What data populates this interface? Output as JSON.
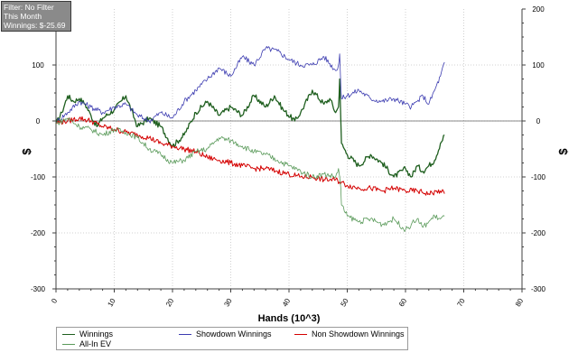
{
  "filter_box": {
    "line1": "Filter: No Filter",
    "line2": "This Month",
    "line3": "Winnings: $-25.69"
  },
  "legend": [
    {
      "label": "Winnings",
      "color": "#1f5f1f"
    },
    {
      "label": "Showdown Winnings",
      "color": "#3b3bb0"
    },
    {
      "label": "Non Showdown Winnings",
      "color": "#d40000"
    },
    {
      "label": "All-In EV",
      "color": "#5a9a5a"
    }
  ],
  "chart_data": {
    "type": "line",
    "xlabel": "Hands (10^3)",
    "ylabel": "$",
    "xlim": [
      0,
      80
    ],
    "ylim": [
      -300,
      200
    ],
    "y_display_max_left": 100,
    "x_ticks": [
      "0",
      "10",
      "20",
      "30",
      "40",
      "50",
      "60",
      "70",
      "80"
    ],
    "y_ticks": [
      "200",
      "100",
      "0",
      "-100",
      "-200",
      "-300"
    ],
    "y_ticks_left": [
      "100",
      "0",
      "-100",
      "-200",
      "-300"
    ],
    "grid": true,
    "legend_position": "bottom",
    "series": [
      {
        "name": "Winnings",
        "color": "#1f5f1f",
        "width": 1.3,
        "x": [
          0,
          1,
          2,
          3,
          4,
          5,
          6,
          7,
          8,
          10,
          12,
          14,
          16,
          18,
          20,
          22,
          24,
          26,
          28,
          30,
          32,
          34,
          36,
          37.5,
          39,
          41,
          42,
          44,
          46,
          47,
          48,
          48.5,
          48.7,
          48.9,
          49,
          50,
          52,
          54,
          56,
          58,
          60,
          61,
          62,
          63,
          64,
          65,
          66,
          66.7
        ],
        "y": [
          -5,
          15,
          45,
          35,
          40,
          30,
          10,
          -10,
          5,
          20,
          45,
          -10,
          5,
          -10,
          -45,
          -25,
          15,
          35,
          10,
          25,
          10,
          45,
          25,
          45,
          20,
          0,
          15,
          55,
          30,
          40,
          15,
          25,
          75,
          0,
          -40,
          -60,
          -80,
          -60,
          -75,
          -100,
          -85,
          -100,
          -80,
          -90,
          -80,
          -70,
          -40,
          -25
        ]
      },
      {
        "name": "Showdown Winnings",
        "color": "#3b3bb0",
        "width": 0.8,
        "x": [
          0,
          2,
          4,
          6,
          8,
          10,
          12,
          14,
          16,
          18,
          20,
          22,
          24,
          26,
          28,
          30,
          32,
          34,
          36,
          38,
          40,
          42,
          44,
          46,
          48,
          48.5,
          48.7,
          48.9,
          49,
          50,
          52,
          54,
          56,
          58,
          60,
          61,
          62,
          63,
          64,
          65,
          66,
          66.7
        ],
        "y": [
          -2,
          15,
          35,
          25,
          15,
          25,
          30,
          10,
          0,
          15,
          5,
          35,
          55,
          75,
          95,
          80,
          115,
          100,
          130,
          125,
          110,
          100,
          100,
          115,
          90,
          100,
          120,
          60,
          40,
          45,
          55,
          40,
          35,
          40,
          30,
          25,
          35,
          45,
          30,
          55,
          80,
          105
        ]
      },
      {
        "name": "Non Showdown Winnings",
        "color": "#d40000",
        "width": 1.0,
        "x": [
          0,
          2,
          4,
          6,
          8,
          10,
          12,
          14,
          16,
          18,
          20,
          22,
          24,
          26,
          28,
          30,
          32,
          34,
          36,
          38,
          40,
          42,
          44,
          46,
          48,
          50,
          52,
          54,
          56,
          58,
          60,
          62,
          64,
          66,
          66.7
        ],
        "y": [
          -3,
          0,
          5,
          0,
          -10,
          -15,
          -20,
          -25,
          -30,
          -40,
          -45,
          -50,
          -55,
          -65,
          -70,
          -75,
          -80,
          -85,
          -85,
          -90,
          -95,
          -100,
          -100,
          -105,
          -105,
          -115,
          -120,
          -120,
          -125,
          -120,
          -125,
          -125,
          -130,
          -125,
          -130
        ]
      },
      {
        "name": "All-In EV",
        "color": "#5a9a5a",
        "width": 0.8,
        "x": [
          0,
          2,
          4,
          6,
          8,
          10,
          12,
          14,
          16,
          18,
          20,
          22,
          24,
          26,
          28,
          30,
          32,
          34,
          36,
          38,
          40,
          42,
          44,
          46,
          48,
          48.5,
          48.9,
          49,
          50,
          52,
          54,
          56,
          58,
          60,
          61,
          62,
          63,
          64,
          65,
          66,
          66.7
        ],
        "y": [
          -5,
          5,
          -10,
          -15,
          -25,
          -15,
          -20,
          -30,
          -50,
          -60,
          -75,
          -70,
          -55,
          -50,
          -30,
          -35,
          -45,
          -55,
          -60,
          -70,
          -80,
          -90,
          -100,
          -95,
          -100,
          -85,
          -120,
          -150,
          -170,
          -180,
          -175,
          -185,
          -175,
          -195,
          -185,
          -175,
          -190,
          -180,
          -170,
          -175,
          -170
        ]
      }
    ]
  }
}
